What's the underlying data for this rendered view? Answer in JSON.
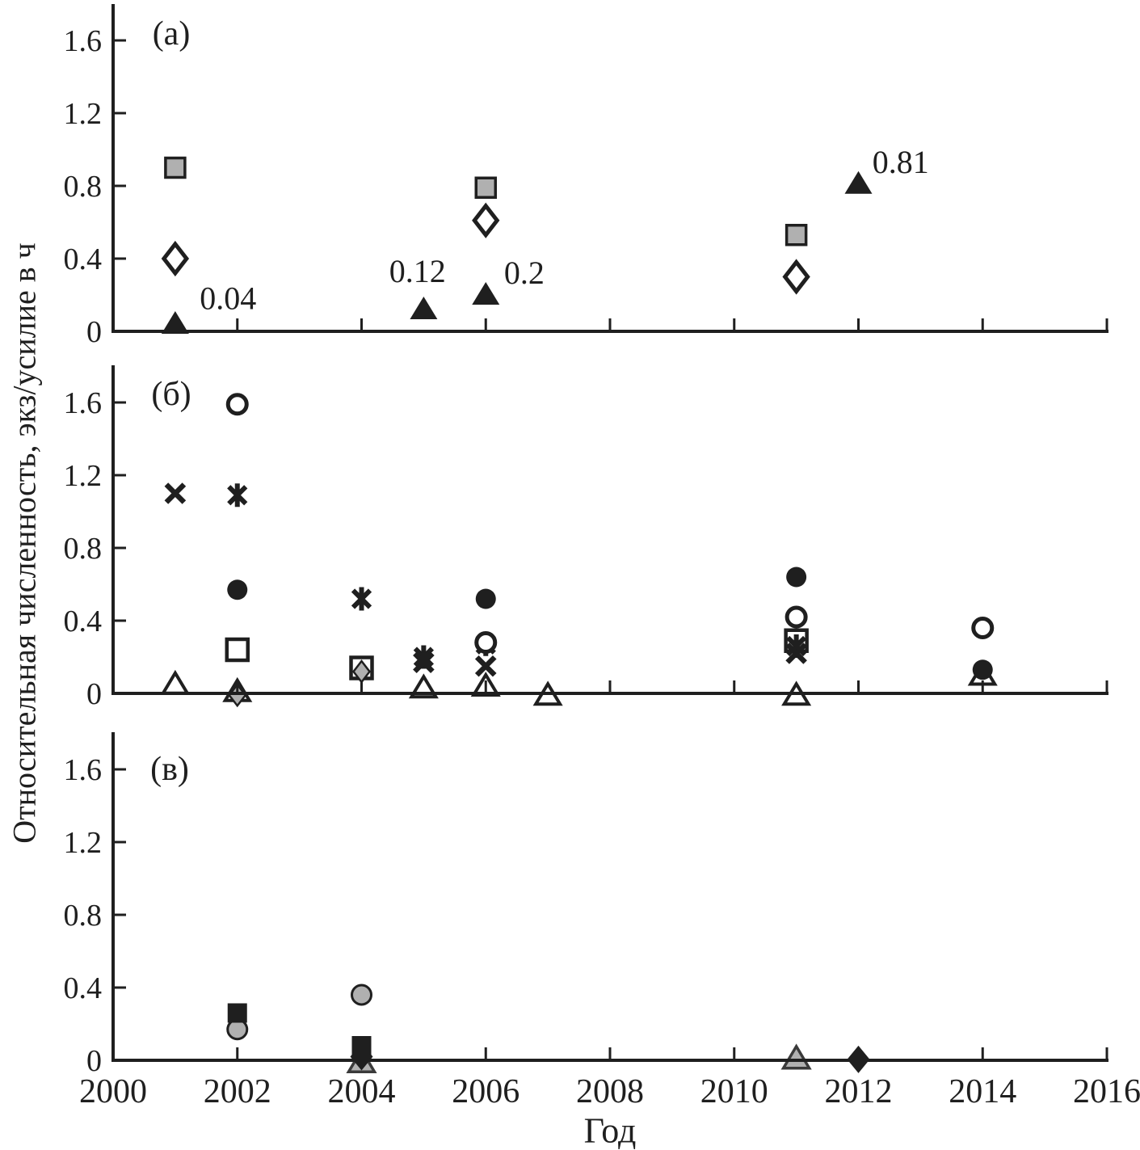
{
  "figure": {
    "ylabel": "Относительная численность, экз/усилие в ч",
    "xlabel": "Год"
  },
  "colors": {
    "ink": "#1f1f1f",
    "marker_gray": "#b0b0b0",
    "background": "#ffffff"
  },
  "axes": {
    "x_range": [
      2000,
      2016
    ],
    "x_ticks": [
      2000,
      2002,
      2004,
      2006,
      2008,
      2010,
      2012,
      2014,
      2016
    ],
    "y_ticks": [
      0,
      0.4,
      0.8,
      1.2,
      1.6
    ],
    "grid": "off",
    "legend": "none"
  },
  "chart_data": [
    {
      "id": "a",
      "label": "(а)",
      "type": "scatter",
      "xlabel": "Год",
      "ylabel": "Относительная численность, экз/усилие в ч",
      "ylim": [
        0,
        1.75
      ],
      "series": [
        {
          "name": "gray-square",
          "points": [
            [
              2001,
              0.9
            ],
            [
              2006,
              0.79
            ],
            [
              2011,
              0.53
            ]
          ]
        },
        {
          "name": "open-diamond",
          "points": [
            [
              2001,
              0.4
            ],
            [
              2006,
              0.61
            ],
            [
              2011,
              0.3
            ]
          ]
        },
        {
          "name": "filled-triangle",
          "points": [
            [
              2001,
              0.04
            ],
            [
              2005,
              0.12
            ],
            [
              2006,
              0.2
            ],
            [
              2012,
              0.81
            ]
          ]
        }
      ],
      "annotations": [
        {
          "text": "0.04",
          "x": 2001.85,
          "y": 0.18
        },
        {
          "text": "0.12",
          "x": 2004.9,
          "y": 0.33
        },
        {
          "text": "0.2",
          "x": 2006.62,
          "y": 0.32
        },
        {
          "text": "0.81",
          "x": 2012.68,
          "y": 0.93
        }
      ]
    },
    {
      "id": "b",
      "label": "(б)",
      "type": "scatter",
      "ylim": [
        0,
        1.75
      ],
      "series": [
        {
          "name": "open-triangle",
          "points": [
            [
              2001,
              0.05
            ],
            [
              2002,
              0.01
            ],
            [
              2005,
              0.03
            ],
            [
              2006,
              0.04
            ],
            [
              2007,
              -0.01
            ],
            [
              2011,
              -0.01
            ],
            [
              2014,
              0.1
            ]
          ]
        },
        {
          "name": "open-square",
          "points": [
            [
              2002,
              0.24
            ],
            [
              2004,
              0.14
            ],
            [
              2011,
              0.29
            ]
          ]
        },
        {
          "name": "gray-diamond",
          "points": [
            [
              2002,
              -0.01
            ],
            [
              2004,
              0.12
            ]
          ]
        },
        {
          "name": "asterisk",
          "points": [
            [
              2002,
              1.09
            ],
            [
              2004,
              0.52
            ],
            [
              2005,
              0.2
            ],
            [
              2006,
              0.27
            ],
            [
              2011,
              0.26
            ]
          ]
        },
        {
          "name": "x-mark",
          "points": [
            [
              2001,
              1.1
            ],
            [
              2005,
              0.17
            ],
            [
              2006,
              0.15
            ],
            [
              2011,
              0.22
            ]
          ]
        },
        {
          "name": "open-circle",
          "points": [
            [
              2002,
              1.59
            ],
            [
              2006,
              0.28
            ],
            [
              2011,
              0.42
            ],
            [
              2014,
              0.36
            ]
          ]
        },
        {
          "name": "filled-circle",
          "points": [
            [
              2002,
              0.57
            ],
            [
              2006,
              0.52
            ],
            [
              2011,
              0.64
            ],
            [
              2014,
              0.13
            ]
          ]
        }
      ],
      "annotations": []
    },
    {
      "id": "c",
      "label": "(в)",
      "type": "scatter",
      "ylim": [
        0,
        1.75
      ],
      "series": [
        {
          "name": "gray-triangle",
          "points": [
            [
              2004,
              -0.01
            ],
            [
              2011,
              0.01
            ]
          ]
        },
        {
          "name": "filled-diamond",
          "points": [
            [
              2004,
              0.02
            ],
            [
              2012,
              0.005
            ]
          ]
        },
        {
          "name": "gray-circle",
          "points": [
            [
              2002,
              0.17
            ],
            [
              2004,
              0.36
            ]
          ]
        },
        {
          "name": "filled-square",
          "points": [
            [
              2002,
              0.26
            ],
            [
              2004,
              0.08
            ]
          ]
        }
      ],
      "annotations": []
    }
  ]
}
